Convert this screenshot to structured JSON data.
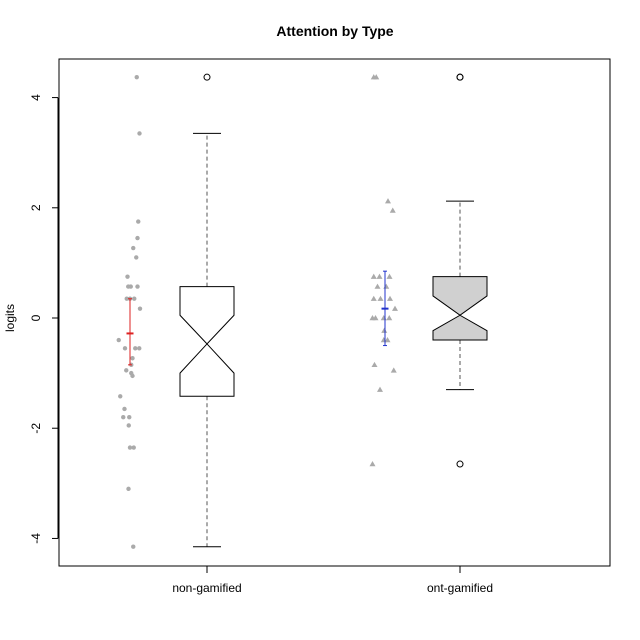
{
  "chart_data": {
    "type": "box",
    "title": "Attention by Type",
    "xlabel": "",
    "ylabel": "logits",
    "ylim": [
      -4.5,
      4.7
    ],
    "yticks": [
      -4,
      -2,
      0,
      2,
      4
    ],
    "categories": [
      "non-gamified",
      "ont-gamified"
    ],
    "boxes": [
      {
        "name": "non-gamified",
        "fill": "#ffffff",
        "whisker_low": -4.15,
        "q1": -1.42,
        "median": -0.47,
        "q3": 0.57,
        "whisker_high": 3.35,
        "notch_low": -1.0,
        "notch_high": 0.05,
        "outliers": [
          4.37
        ]
      },
      {
        "name": "ont-gamified",
        "fill": "#d0d0d0",
        "whisker_low": -1.3,
        "q1": -0.4,
        "median": 0.05,
        "q3": 0.75,
        "whisker_high": 2.12,
        "notch_low": -0.23,
        "notch_high": 0.4,
        "outliers": [
          4.37,
          4.37,
          -2.65
        ]
      }
    ],
    "mean_ci": [
      {
        "name": "non-gamified",
        "mean": -0.28,
        "low": -0.85,
        "high": 0.35,
        "color": "#dd2222"
      },
      {
        "name": "ont-gamified",
        "mean": 0.17,
        "low": -0.5,
        "high": 0.85,
        "color": "#2233cc"
      }
    ],
    "jitter_points": [
      {
        "name": "non-gamified",
        "marker": "circle",
        "color": "#aaaaaa",
        "points": [
          [
            0.27,
            4.37
          ],
          [
            0.38,
            3.35
          ],
          [
            0.33,
            1.75
          ],
          [
            0.3,
            1.45
          ],
          [
            0.13,
            1.27
          ],
          [
            0.25,
            1.1
          ],
          [
            -0.1,
            0.75
          ],
          [
            -0.07,
            0.57
          ],
          [
            0.03,
            0.57
          ],
          [
            0.3,
            0.57
          ],
          [
            -0.13,
            0.35
          ],
          [
            0.0,
            0.35
          ],
          [
            0.17,
            0.35
          ],
          [
            0.4,
            0.17
          ],
          [
            0.21,
            -0.55
          ],
          [
            -0.45,
            -0.4
          ],
          [
            0.37,
            -0.55
          ],
          [
            -0.2,
            -0.55
          ],
          [
            0.1,
            -0.73
          ],
          [
            0.05,
            -0.85
          ],
          [
            -0.15,
            -0.95
          ],
          [
            0.05,
            -1.0
          ],
          [
            0.1,
            -1.05
          ],
          [
            -0.39,
            -1.42
          ],
          [
            -0.22,
            -1.65
          ],
          [
            -0.27,
            -1.8
          ],
          [
            -0.03,
            -1.8
          ],
          [
            -0.05,
            -1.95
          ],
          [
            0.0,
            -2.35
          ],
          [
            0.15,
            -2.35
          ],
          [
            -0.06,
            -3.1
          ],
          [
            0.13,
            -4.15
          ]
        ]
      },
      {
        "name": "ont-gamified",
        "marker": "triangle",
        "color": "#aaaaaa",
        "points": [
          [
            -0.45,
            4.37
          ],
          [
            -0.35,
            4.37
          ],
          [
            0.12,
            2.12
          ],
          [
            0.31,
            1.95
          ],
          [
            -0.45,
            0.75
          ],
          [
            -0.22,
            0.75
          ],
          [
            0.18,
            0.75
          ],
          [
            -0.3,
            0.57
          ],
          [
            0.05,
            0.57
          ],
          [
            -0.45,
            0.35
          ],
          [
            -0.18,
            0.35
          ],
          [
            0.2,
            0.35
          ],
          [
            0.4,
            0.17
          ],
          [
            -0.03,
            -0.23
          ],
          [
            -0.5,
            0.0
          ],
          [
            -0.38,
            0.0
          ],
          [
            -0.05,
            0.0
          ],
          [
            0.17,
            0.0
          ],
          [
            0.1,
            -0.4
          ],
          [
            -0.05,
            -0.4
          ],
          [
            -0.42,
            -0.85
          ],
          [
            0.35,
            -0.95
          ],
          [
            -0.2,
            -1.3
          ],
          [
            -0.5,
            -2.65
          ]
        ]
      }
    ],
    "grid": false,
    "legend": "none"
  }
}
